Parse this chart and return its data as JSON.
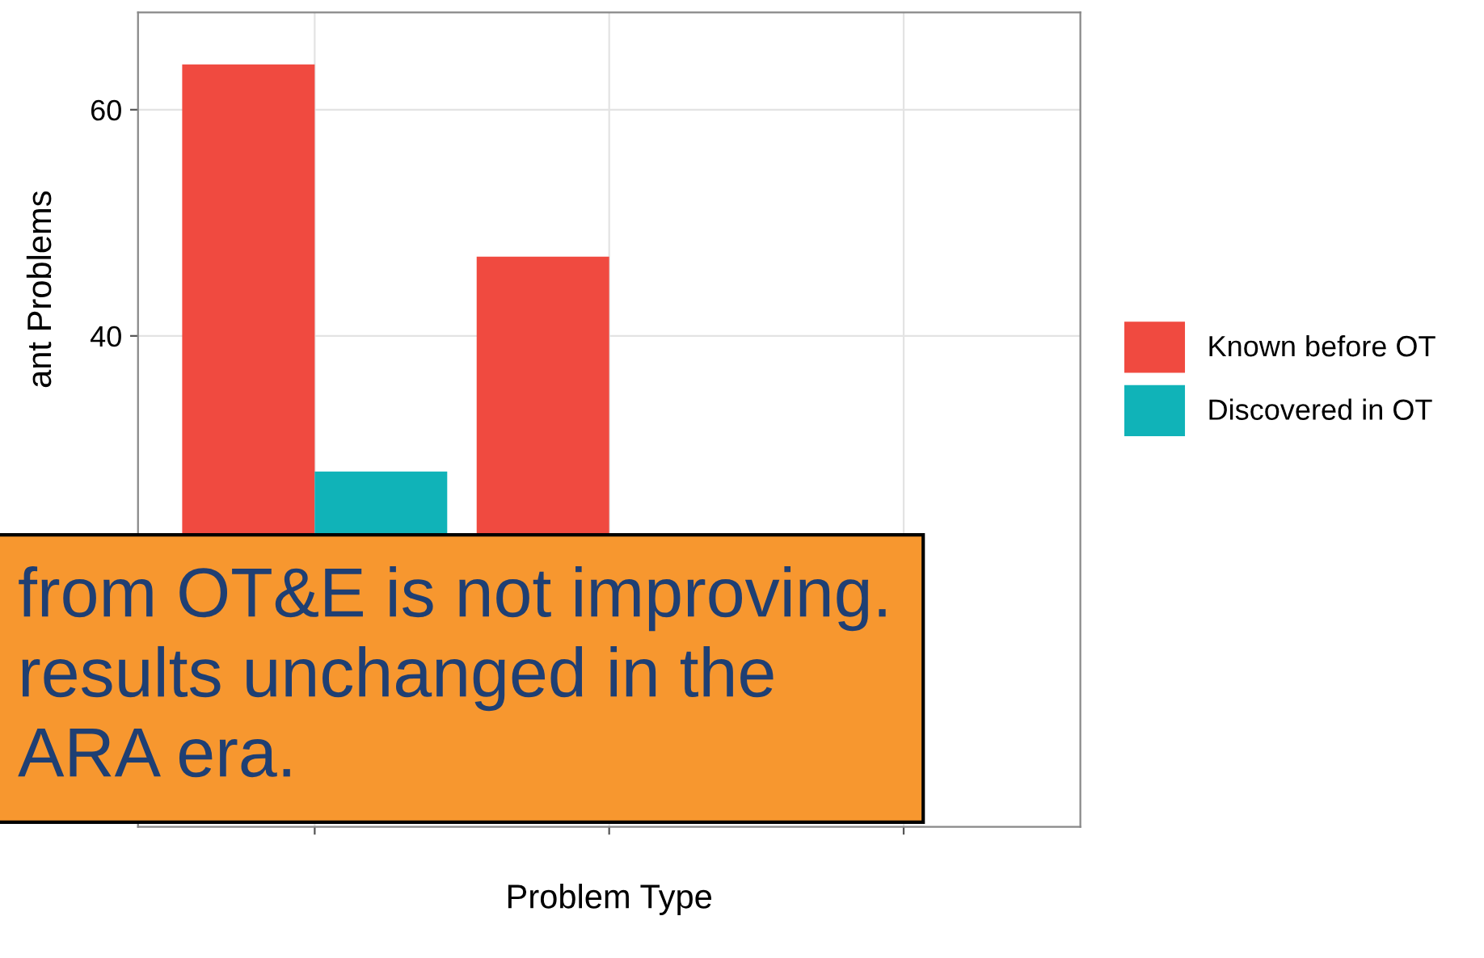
{
  "chart_data": {
    "type": "bar",
    "xlabel": "Problem Type",
    "ylabel": "ant Problems",
    "categories": [
      null,
      null,
      null
    ],
    "series": [
      {
        "name": "Known before OT",
        "color": "#f04a40",
        "values": [
          64,
          47,
          null
        ]
      },
      {
        "name": "Discovered in OT",
        "color": "#10b3b8",
        "values": [
          28,
          null,
          null
        ]
      }
    ],
    "ylim": [
      -3.4,
      68.6
    ],
    "yticks": [
      40,
      60
    ],
    "grid": true,
    "legend": "right",
    "annotations": [
      "from OT&E is not improving.",
      "results unchanged in the",
      "ARA era."
    ]
  }
}
